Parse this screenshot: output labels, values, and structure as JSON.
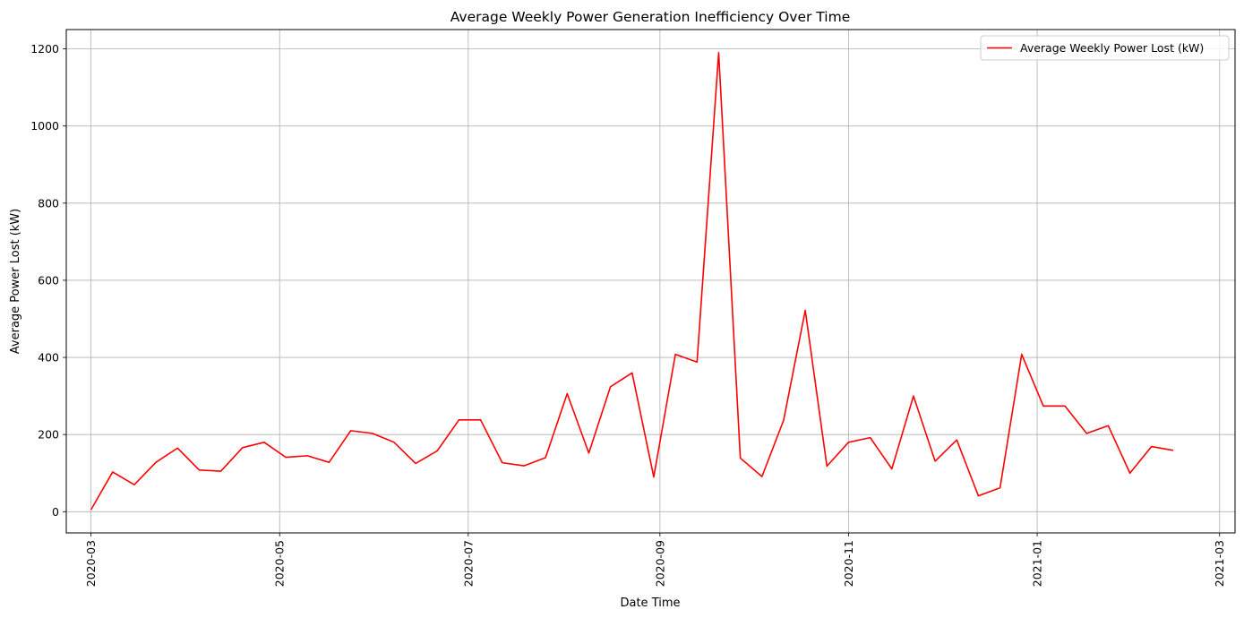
{
  "chart_data": {
    "type": "line",
    "title": "Average Weekly Power Generation Inefficiency Over Time",
    "xlabel": "Date Time",
    "ylabel": "Average Power Lost (kW)",
    "ylim": [
      -55,
      1250
    ],
    "xlim": [
      "2020-02-22",
      "2021-03-06"
    ],
    "grid": true,
    "legend_position": "top-right",
    "x_ticks": [
      "2020-03",
      "2020-05",
      "2020-07",
      "2020-09",
      "2020-11",
      "2021-01",
      "2021-03"
    ],
    "y_ticks": [
      "0",
      "200",
      "400",
      "600",
      "800",
      "1000",
      "1200"
    ],
    "series": [
      {
        "name": "Average Weekly Power Lost (kW)",
        "color": "#ff0000",
        "x": [
          "2020-03-01",
          "2020-03-08",
          "2020-03-15",
          "2020-03-22",
          "2020-03-29",
          "2020-04-05",
          "2020-04-12",
          "2020-04-19",
          "2020-04-26",
          "2020-05-03",
          "2020-05-10",
          "2020-05-17",
          "2020-05-24",
          "2020-05-31",
          "2020-06-07",
          "2020-06-14",
          "2020-06-21",
          "2020-06-28",
          "2020-07-05",
          "2020-07-12",
          "2020-07-19",
          "2020-07-26",
          "2020-08-02",
          "2020-08-09",
          "2020-08-16",
          "2020-08-23",
          "2020-08-30",
          "2020-09-06",
          "2020-09-13",
          "2020-09-20",
          "2020-09-27",
          "2020-10-04",
          "2020-10-11",
          "2020-10-18",
          "2020-10-25",
          "2020-11-01",
          "2020-11-08",
          "2020-11-15",
          "2020-11-22",
          "2020-11-29",
          "2020-12-06",
          "2020-12-13",
          "2020-12-20",
          "2020-12-27",
          "2021-01-03",
          "2021-01-10",
          "2021-01-17",
          "2021-01-24",
          "2021-01-31",
          "2021-02-07",
          "2021-02-14"
        ],
        "values": [
          5,
          103,
          70,
          128,
          165,
          108,
          105,
          166,
          180,
          141,
          145,
          128,
          210,
          203,
          180,
          125,
          158,
          238,
          238,
          127,
          119,
          140,
          306,
          152,
          324,
          360,
          90,
          408,
          388,
          1190,
          139,
          91,
          237,
          522,
          118,
          180,
          192,
          111,
          300,
          131,
          186,
          41,
          62,
          408,
          274,
          274,
          203,
          223,
          100,
          169,
          159
        ]
      }
    ]
  }
}
